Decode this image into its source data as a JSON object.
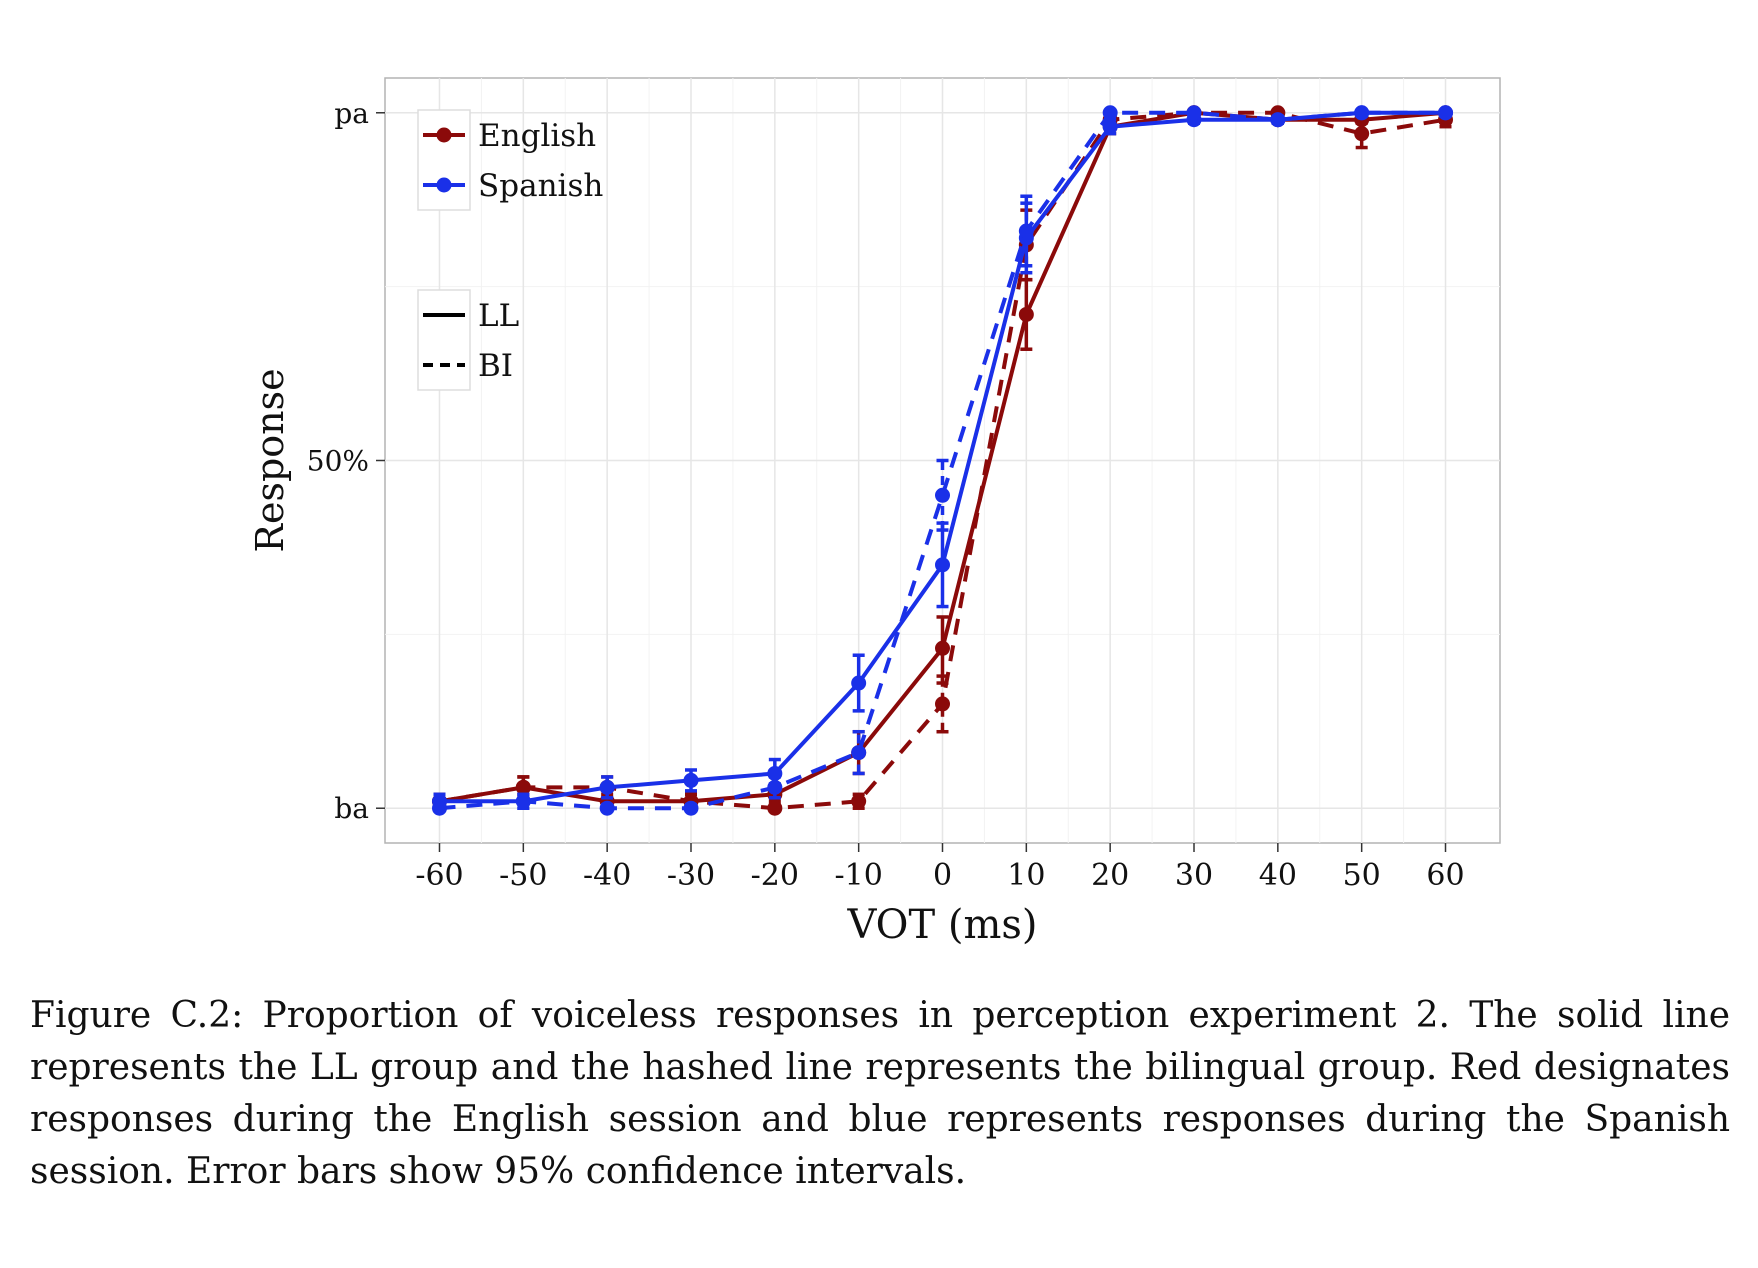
{
  "figure": {
    "caption": "Figure C.2: Proportion of voiceless responses in perception experiment 2. The solid line represents the LL group and the hashed line represents the bilingual group. Red designates responses during the English session and blue represents responses during the Spanish session. Error bars show 95% confidence intervals."
  },
  "chart_data": {
    "type": "line",
    "xlabel": "VOT (ms)",
    "ylabel": "Response",
    "x": [
      -60,
      -50,
      -40,
      -30,
      -20,
      -10,
      0,
      10,
      20,
      30,
      40,
      50,
      60
    ],
    "x_tick_labels": [
      "-60",
      "-50",
      "-40",
      "-30",
      "-20",
      "-10",
      "0",
      "10",
      "20",
      "30",
      "40",
      "50",
      "60"
    ],
    "xlim": [
      -66.5,
      66.5
    ],
    "ylim": [
      -0.05,
      1.05
    ],
    "y_ticks": [
      {
        "value": 0,
        "label": "ba"
      },
      {
        "value": 0.5,
        "label": "50%"
      },
      {
        "value": 1,
        "label": "pa"
      }
    ],
    "grid": true,
    "legend_position": "top-left",
    "colors": {
      "English": "#8b0a0a",
      "Spanish": "#1a30e8"
    },
    "legend": {
      "session": [
        {
          "label": "English",
          "color": "#8b0a0a"
        },
        {
          "label": "Spanish",
          "color": "#1a30e8"
        }
      ],
      "group": [
        {
          "label": "LL",
          "dash": "solid"
        },
        {
          "label": "BI",
          "dash": "dashed"
        }
      ]
    },
    "series": [
      {
        "session": "English",
        "group": "LL",
        "values": [
          0.01,
          0.03,
          0.01,
          0.01,
          0.02,
          0.08,
          0.23,
          0.71,
          0.98,
          1.0,
          0.99,
          0.99,
          1.0
        ],
        "ci_low": [
          0.0,
          0.02,
          0.005,
          0.005,
          0.01,
          0.05,
          0.18,
          0.66,
          0.97,
          0.995,
          0.985,
          0.985,
          0.995
        ],
        "ci_high": [
          0.02,
          0.045,
          0.02,
          0.02,
          0.03,
          0.11,
          0.275,
          0.76,
          0.99,
          1.0,
          0.995,
          0.995,
          1.0
        ]
      },
      {
        "session": "English",
        "group": "BI",
        "values": [
          0.01,
          0.03,
          0.03,
          0.01,
          0.0,
          0.01,
          0.15,
          0.81,
          0.99,
          1.0,
          1.0,
          0.97,
          0.99
        ],
        "ci_low": [
          0.0,
          0.015,
          0.015,
          0.0,
          0.0,
          0.0,
          0.11,
          0.76,
          0.98,
          0.995,
          0.995,
          0.95,
          0.98
        ],
        "ci_high": [
          0.02,
          0.045,
          0.045,
          0.02,
          0.005,
          0.02,
          0.19,
          0.86,
          1.0,
          1.0,
          1.0,
          0.99,
          1.0
        ]
      },
      {
        "session": "Spanish",
        "group": "LL",
        "values": [
          0.01,
          0.01,
          0.03,
          0.04,
          0.05,
          0.18,
          0.35,
          0.82,
          0.98,
          0.99,
          0.99,
          1.0,
          1.0
        ],
        "ci_low": [
          0.0,
          0.0,
          0.015,
          0.025,
          0.035,
          0.14,
          0.29,
          0.77,
          0.97,
          0.985,
          0.985,
          0.995,
          0.995
        ],
        "ci_high": [
          0.02,
          0.02,
          0.045,
          0.055,
          0.07,
          0.22,
          0.41,
          0.87,
          0.99,
          0.995,
          0.995,
          1.0,
          1.0
        ]
      },
      {
        "session": "Spanish",
        "group": "BI",
        "values": [
          0.0,
          0.01,
          0.0,
          0.0,
          0.03,
          0.08,
          0.45,
          0.83,
          1.0,
          1.0,
          0.99,
          1.0,
          1.0
        ],
        "ci_low": [
          0.0,
          0.0,
          0.0,
          0.0,
          0.015,
          0.05,
          0.4,
          0.78,
          0.995,
          0.995,
          0.985,
          0.995,
          0.995
        ],
        "ci_high": [
          0.01,
          0.02,
          0.005,
          0.005,
          0.045,
          0.11,
          0.5,
          0.88,
          1.0,
          1.0,
          0.995,
          1.0,
          1.0
        ]
      }
    ]
  }
}
